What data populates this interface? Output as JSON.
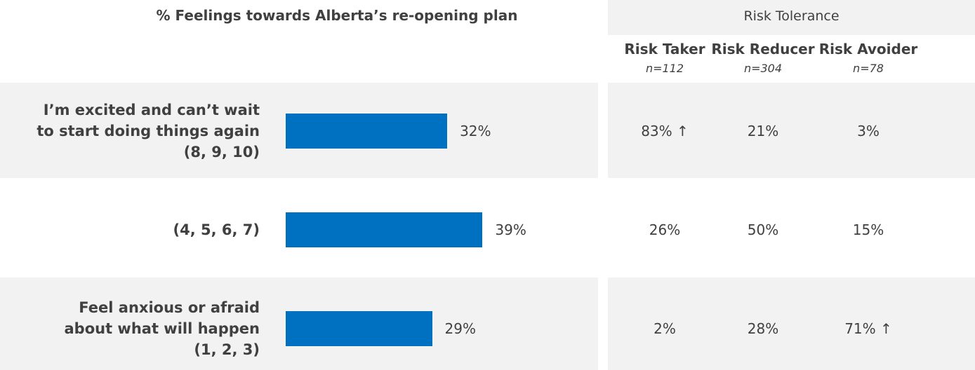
{
  "chart_data": {
    "type": "bar",
    "orientation": "horizontal",
    "title": "% Feelings towards Alberta’s re-opening plan",
    "categories": [
      "I’m excited and can’t wait\nto start doing things again\n(8, 9, 10)",
      "(4, 5, 6, 7)",
      "Feel anxious or afraid\nabout what will happen\n(1, 2, 3)"
    ],
    "values": [
      32,
      39,
      29
    ],
    "value_labels": [
      "32%",
      "39%",
      "29%"
    ],
    "color": "#0070c0"
  },
  "table": {
    "title": "Risk Tolerance",
    "columns": [
      {
        "name": "Risk Taker",
        "n": "n=112"
      },
      {
        "name": "Risk Reducer",
        "n": "n=304"
      },
      {
        "name": "Risk Avoider",
        "n": "n=78"
      }
    ],
    "rows": [
      [
        "83% ↑",
        "21%",
        "3%"
      ],
      [
        "26%",
        "50%",
        "15%"
      ],
      [
        "2%",
        "28%",
        "71% ↑"
      ]
    ]
  }
}
